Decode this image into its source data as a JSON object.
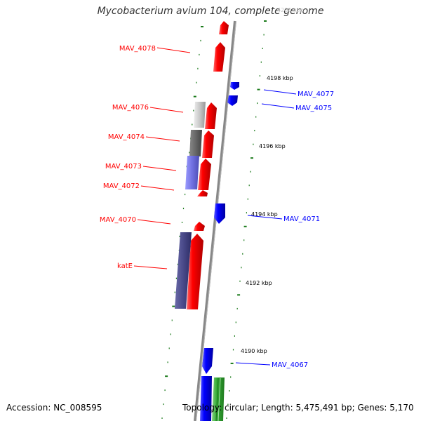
{
  "title": "Mycobacterium avium 104, complete genome",
  "accession": "Accession: NC_008595",
  "topology": "Topology: circular; Length: 5,475,491 bp; Genes: 5,170",
  "colors": {
    "forward": "#ff0000",
    "reverse": "#0000ff",
    "rna": "#33aa33",
    "backbone": "#888888",
    "ticks": "#1a7a1a"
  },
  "ticks": [
    "4200 kbp",
    "4198 kbp",
    "4196 kbp",
    "4194 kbp",
    "4192 kbp",
    "4190 kbp"
  ],
  "labels": {
    "left": [
      "MAV_4078",
      "MAV_4076",
      "MAV_4074",
      "MAV_4073",
      "MAV_4072",
      "MAV_4070",
      "katE"
    ],
    "right": [
      "MAV_4077",
      "MAV_4075",
      "MAV_4071",
      "MAV_4067"
    ]
  }
}
